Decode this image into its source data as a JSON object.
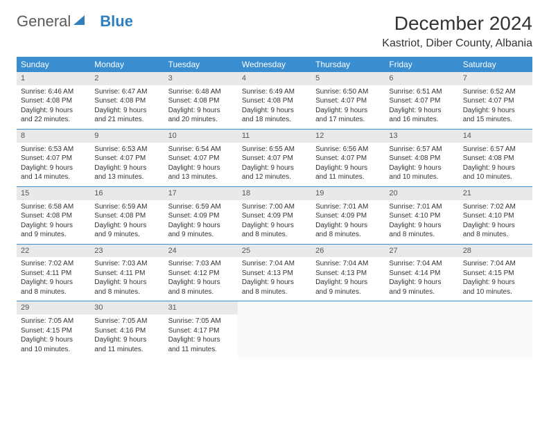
{
  "logo": {
    "word1": "General",
    "word2": "Blue"
  },
  "title": "December 2024",
  "location": "Kastriot, Diber County, Albania",
  "colors": {
    "header_bg": "#3a8dcf",
    "header_text": "#ffffff",
    "daynum_bg": "#e9e9e9",
    "border": "#3a8dcf",
    "logo_gray": "#5a5a5a",
    "logo_blue": "#2f7fbf",
    "text": "#333333"
  },
  "dayNames": [
    "Sunday",
    "Monday",
    "Tuesday",
    "Wednesday",
    "Thursday",
    "Friday",
    "Saturday"
  ],
  "weeks": [
    [
      {
        "d": "1",
        "r": "6:46 AM",
        "s": "4:08 PM",
        "l": "9 hours and 22 minutes."
      },
      {
        "d": "2",
        "r": "6:47 AM",
        "s": "4:08 PM",
        "l": "9 hours and 21 minutes."
      },
      {
        "d": "3",
        "r": "6:48 AM",
        "s": "4:08 PM",
        "l": "9 hours and 20 minutes."
      },
      {
        "d": "4",
        "r": "6:49 AM",
        "s": "4:08 PM",
        "l": "9 hours and 18 minutes."
      },
      {
        "d": "5",
        "r": "6:50 AM",
        "s": "4:07 PM",
        "l": "9 hours and 17 minutes."
      },
      {
        "d": "6",
        "r": "6:51 AM",
        "s": "4:07 PM",
        "l": "9 hours and 16 minutes."
      },
      {
        "d": "7",
        "r": "6:52 AM",
        "s": "4:07 PM",
        "l": "9 hours and 15 minutes."
      }
    ],
    [
      {
        "d": "8",
        "r": "6:53 AM",
        "s": "4:07 PM",
        "l": "9 hours and 14 minutes."
      },
      {
        "d": "9",
        "r": "6:53 AM",
        "s": "4:07 PM",
        "l": "9 hours and 13 minutes."
      },
      {
        "d": "10",
        "r": "6:54 AM",
        "s": "4:07 PM",
        "l": "9 hours and 13 minutes."
      },
      {
        "d": "11",
        "r": "6:55 AM",
        "s": "4:07 PM",
        "l": "9 hours and 12 minutes."
      },
      {
        "d": "12",
        "r": "6:56 AM",
        "s": "4:07 PM",
        "l": "9 hours and 11 minutes."
      },
      {
        "d": "13",
        "r": "6:57 AM",
        "s": "4:08 PM",
        "l": "9 hours and 10 minutes."
      },
      {
        "d": "14",
        "r": "6:57 AM",
        "s": "4:08 PM",
        "l": "9 hours and 10 minutes."
      }
    ],
    [
      {
        "d": "15",
        "r": "6:58 AM",
        "s": "4:08 PM",
        "l": "9 hours and 9 minutes."
      },
      {
        "d": "16",
        "r": "6:59 AM",
        "s": "4:08 PM",
        "l": "9 hours and 9 minutes."
      },
      {
        "d": "17",
        "r": "6:59 AM",
        "s": "4:09 PM",
        "l": "9 hours and 9 minutes."
      },
      {
        "d": "18",
        "r": "7:00 AM",
        "s": "4:09 PM",
        "l": "9 hours and 8 minutes."
      },
      {
        "d": "19",
        "r": "7:01 AM",
        "s": "4:09 PM",
        "l": "9 hours and 8 minutes."
      },
      {
        "d": "20",
        "r": "7:01 AM",
        "s": "4:10 PM",
        "l": "9 hours and 8 minutes."
      },
      {
        "d": "21",
        "r": "7:02 AM",
        "s": "4:10 PM",
        "l": "9 hours and 8 minutes."
      }
    ],
    [
      {
        "d": "22",
        "r": "7:02 AM",
        "s": "4:11 PM",
        "l": "9 hours and 8 minutes."
      },
      {
        "d": "23",
        "r": "7:03 AM",
        "s": "4:11 PM",
        "l": "9 hours and 8 minutes."
      },
      {
        "d": "24",
        "r": "7:03 AM",
        "s": "4:12 PM",
        "l": "9 hours and 8 minutes."
      },
      {
        "d": "25",
        "r": "7:04 AM",
        "s": "4:13 PM",
        "l": "9 hours and 8 minutes."
      },
      {
        "d": "26",
        "r": "7:04 AM",
        "s": "4:13 PM",
        "l": "9 hours and 9 minutes."
      },
      {
        "d": "27",
        "r": "7:04 AM",
        "s": "4:14 PM",
        "l": "9 hours and 9 minutes."
      },
      {
        "d": "28",
        "r": "7:04 AM",
        "s": "4:15 PM",
        "l": "9 hours and 10 minutes."
      }
    ],
    [
      {
        "d": "29",
        "r": "7:05 AM",
        "s": "4:15 PM",
        "l": "9 hours and 10 minutes."
      },
      {
        "d": "30",
        "r": "7:05 AM",
        "s": "4:16 PM",
        "l": "9 hours and 11 minutes."
      },
      {
        "d": "31",
        "r": "7:05 AM",
        "s": "4:17 PM",
        "l": "9 hours and 11 minutes."
      },
      null,
      null,
      null,
      null
    ]
  ],
  "labels": {
    "sunrise": "Sunrise:",
    "sunset": "Sunset:",
    "daylight": "Daylight:"
  }
}
